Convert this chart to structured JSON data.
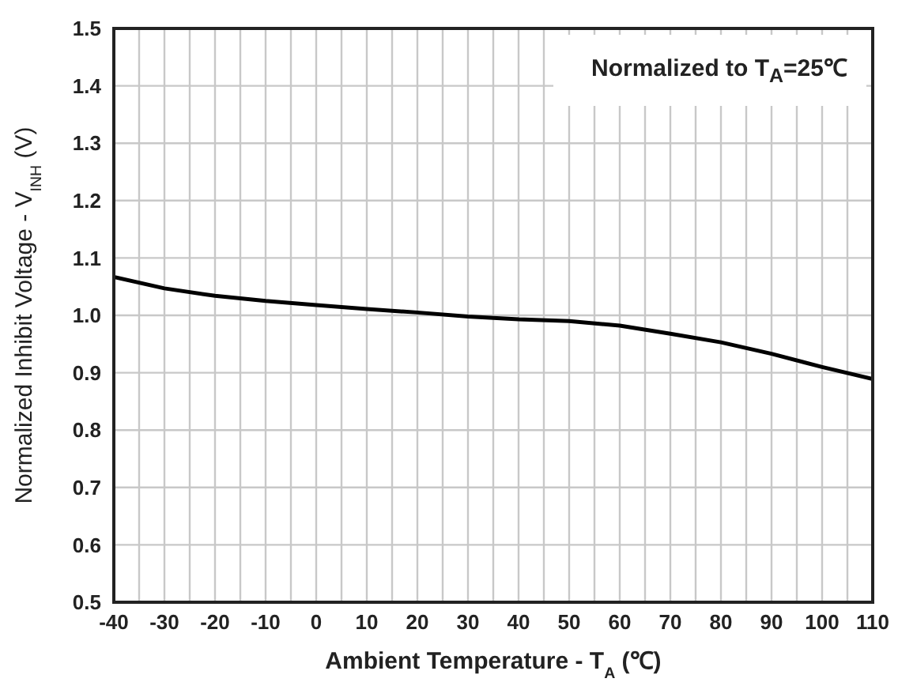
{
  "chart_data": {
    "type": "line",
    "xlabel": "Ambient Temperature - T$_{A}$ (℃)",
    "ylabel": "Normalized Inhibit Voltage - V$_{INH}$ (V)",
    "annotations": [
      "Normalized to T$_{A}$=25℃"
    ],
    "x": [
      -40,
      -30,
      -20,
      -10,
      0,
      10,
      20,
      30,
      40,
      50,
      60,
      70,
      80,
      90,
      100,
      110
    ],
    "series": [
      {
        "color": "#000000",
        "values": [
          1.067,
          1.047,
          1.034,
          1.025,
          1.018,
          1.011,
          1.005,
          0.998,
          0.993,
          0.99,
          0.982,
          0.968,
          0.953,
          0.933,
          0.91,
          0.889
        ]
      }
    ],
    "xlim": [
      -40,
      110
    ],
    "xticks": [
      -40,
      {
        "value": -35,
        "label": null
      },
      -30,
      {
        "value": -25,
        "label": null
      },
      -20,
      {
        "value": -15,
        "label": null
      },
      -10,
      {
        "value": -5,
        "label": null
      },
      0,
      {
        "value": 5,
        "label": null
      },
      10,
      {
        "value": 15,
        "label": null
      },
      20,
      {
        "value": 25,
        "label": null
      },
      30,
      {
        "value": 35,
        "label": null
      },
      40,
      {
        "value": 45,
        "label": null
      },
      50,
      {
        "value": 55,
        "label": null
      },
      60,
      {
        "value": 65,
        "label": null
      },
      70,
      {
        "value": 75,
        "label": null
      },
      80,
      {
        "value": 85,
        "label": null
      },
      90,
      {
        "value": 95,
        "label": null
      },
      100,
      {
        "value": 105,
        "label": null
      },
      110
    ],
    "ylim": [
      0.5,
      1.5
    ],
    "yticks": [
      0.5,
      0.6,
      0.7,
      0.8,
      0.9,
      {
        "value": 1,
        "label": "1.0"
      },
      1.1,
      1.2,
      1.3,
      1.4,
      1.5
    ],
    "grid": true,
    "marker": "none",
    "line_style": "solid"
  }
}
